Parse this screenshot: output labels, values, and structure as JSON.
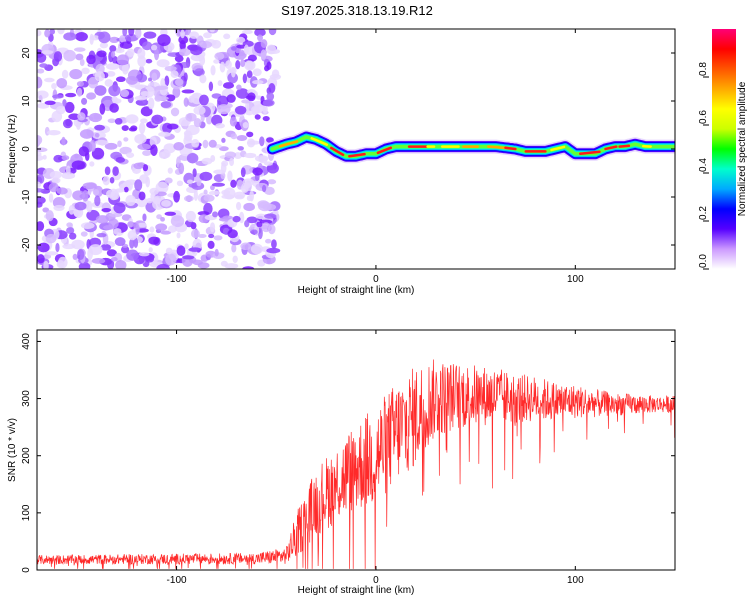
{
  "title": "S197.2025.318.13.19.R12",
  "colors": {
    "snr_line": "#ff2a2a",
    "noise": "#8a2be2",
    "colorbar": [
      "#ffffff",
      "#cc99ff",
      "#5500ff",
      "#0000ff",
      "#00aaff",
      "#00ffcc",
      "#00ff00",
      "#ccff00",
      "#ffff00",
      "#ffaa00",
      "#ff5500",
      "#ff0000",
      "#ff0077"
    ]
  },
  "chart_data": [
    {
      "type": "heatmap",
      "panel": "spectrogram",
      "xlabel": "Height of straight line (km)",
      "ylabel": "Frequency (Hz)",
      "xlim": [
        -170,
        150
      ],
      "ylim": [
        -25,
        25
      ],
      "xticks": [
        {
          "v": -100,
          "label": "-100"
        },
        {
          "v": 0,
          "label": "0"
        },
        {
          "v": 100,
          "label": "100"
        }
      ],
      "yticks": [
        {
          "v": 20,
          "label": "20"
        },
        {
          "v": 10,
          "label": "10"
        },
        {
          "v": 0,
          "label": "0"
        },
        {
          "v": -10,
          "label": "-10"
        },
        {
          "v": -20,
          "label": "-20"
        }
      ],
      "noise_region_x": [
        -170,
        -50
      ],
      "signal_track": {
        "x": [
          -52,
          -45,
          -40,
          -35,
          -30,
          -25,
          -20,
          -15,
          -10,
          -5,
          0,
          5,
          10,
          20,
          30,
          40,
          50,
          60,
          70,
          75,
          80,
          85,
          90,
          95,
          100,
          105,
          110,
          115,
          120,
          125,
          130,
          135,
          140,
          145,
          150
        ],
        "y": [
          0,
          1,
          1.5,
          2.5,
          2,
          1,
          -0.5,
          -1.5,
          -1.5,
          -1,
          -1,
          0,
          0.5,
          0.5,
          0.5,
          0.5,
          0.5,
          0.5,
          0,
          -0.5,
          -0.5,
          -0.5,
          0,
          0.5,
          -1,
          -1,
          -1,
          0,
          0.5,
          0.5,
          1,
          0.5,
          0.5,
          0.5,
          0.5
        ]
      },
      "colorbar": {
        "label": "Normalized spectral amplitude",
        "range": [
          0,
          1
        ],
        "ticks": [
          {
            "v": 0.0,
            "label": "0.0"
          },
          {
            "v": 0.2,
            "label": "0.2"
          },
          {
            "v": 0.4,
            "label": "0.4"
          },
          {
            "v": 0.6,
            "label": "0.6"
          },
          {
            "v": 0.8,
            "label": "0.8"
          }
        ]
      }
    },
    {
      "type": "line",
      "panel": "snr",
      "xlabel": "Height of straight line (km)",
      "ylabel": "SNR (10 * v/v)",
      "xlim": [
        -170,
        150
      ],
      "ylim": [
        0,
        420
      ],
      "xticks": [
        {
          "v": -100,
          "label": "-100"
        },
        {
          "v": 0,
          "label": "0"
        },
        {
          "v": 100,
          "label": "100"
        }
      ],
      "yticks": [
        {
          "v": 0,
          "label": "0"
        },
        {
          "v": 100,
          "label": "100"
        },
        {
          "v": 200,
          "label": "200"
        },
        {
          "v": 300,
          "label": "300"
        },
        {
          "v": 400,
          "label": "400"
        }
      ],
      "envelope": {
        "x": [
          -170,
          -60,
          -45,
          -40,
          -35,
          -30,
          -20,
          -10,
          0,
          10,
          20,
          25,
          30,
          40,
          50,
          60,
          70,
          80,
          90,
          100,
          110,
          120,
          130,
          140,
          150
        ],
        "mean": [
          18,
          20,
          25,
          60,
          90,
          120,
          150,
          180,
          200,
          240,
          270,
          290,
          300,
          305,
          305,
          305,
          300,
          300,
          295,
          295,
          292,
          290,
          290,
          290,
          290
        ],
        "spread": [
          8,
          10,
          15,
          40,
          50,
          60,
          70,
          80,
          90,
          90,
          90,
          80,
          70,
          60,
          55,
          50,
          45,
          40,
          35,
          30,
          25,
          20,
          18,
          15,
          15
        ]
      }
    }
  ]
}
